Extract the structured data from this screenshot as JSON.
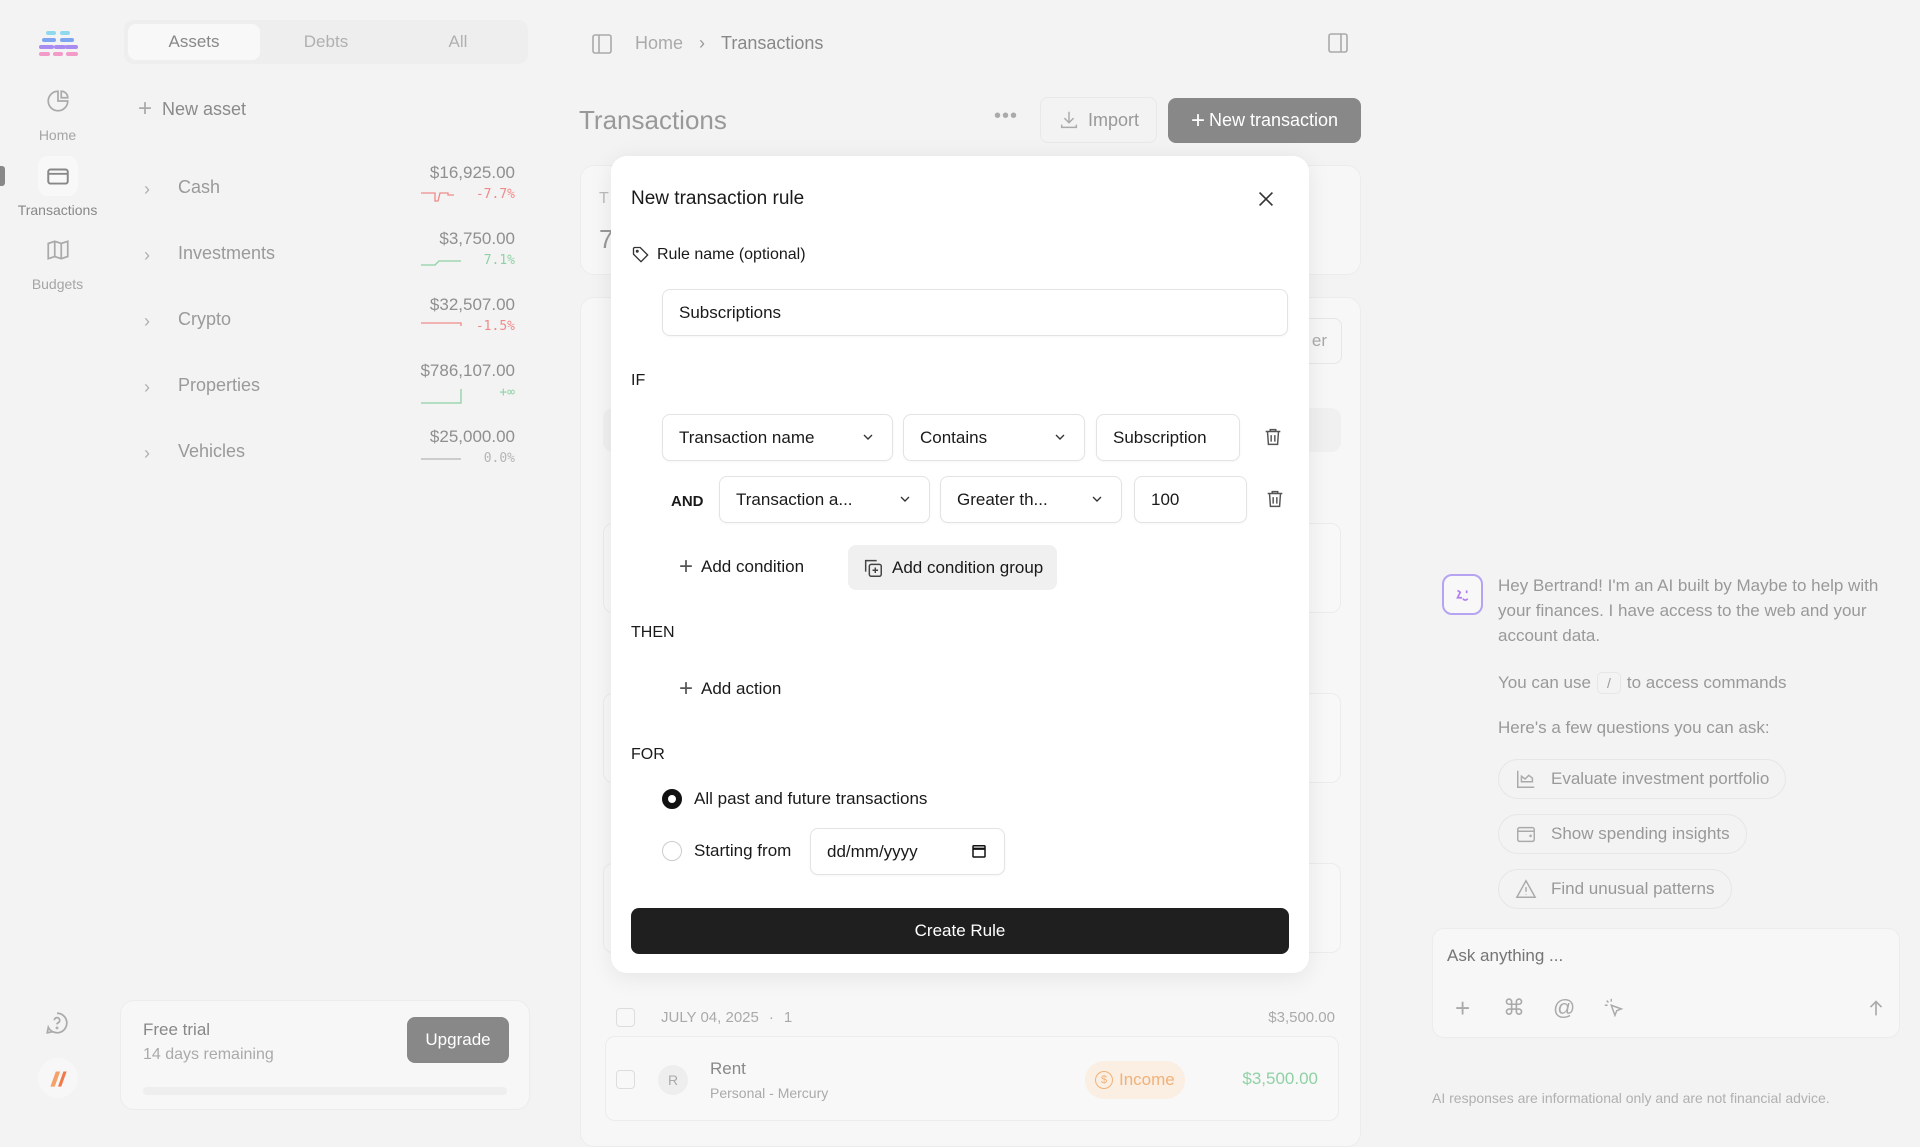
{
  "rail": {
    "items": [
      {
        "label": "Home",
        "icon": "pie-chart-icon"
      },
      {
        "label": "Transactions",
        "icon": "credit-card-icon",
        "active": true
      },
      {
        "label": "Budgets",
        "icon": "map-icon"
      }
    ]
  },
  "assets_panel": {
    "tabs": [
      {
        "label": "Assets",
        "active": true
      },
      {
        "label": "Debts"
      },
      {
        "label": "All"
      }
    ],
    "new_asset": "New asset",
    "rows": [
      {
        "name": "Cash",
        "value": "$16,925.00",
        "change": "-7.7%",
        "trend": "down"
      },
      {
        "name": "Investments",
        "value": "$3,750.00",
        "change": "7.1%",
        "trend": "up"
      },
      {
        "name": "Crypto",
        "value": "$32,507.00",
        "change": "-1.5%",
        "trend": "down"
      },
      {
        "name": "Properties",
        "value": "$786,107.00",
        "change": "+∞",
        "trend": "up"
      },
      {
        "name": "Vehicles",
        "value": "$25,000.00",
        "change": "0.0%",
        "trend": "flat"
      }
    ],
    "trial": {
      "title": "Free trial",
      "subtitle": "14 days remaining",
      "button": "Upgrade",
      "progress": 0
    }
  },
  "colors": {
    "negative": "#f08a8a",
    "positive": "#8fd1a5",
    "neutral": "#b5b5b5",
    "primary": "#1f1f1f",
    "income": "#f0b27a"
  },
  "breadcrumb": [
    "Home",
    "Transactions"
  ],
  "main": {
    "title": "Transactions",
    "import_label": "Import",
    "new_transaction_label": "New transaction",
    "summary_partial": "T",
    "summary_value_partial": "7",
    "filter_partial": "er",
    "group": {
      "date": "JULY 04, 2025",
      "count": "1",
      "total": "$3,500.00"
    },
    "row": {
      "initial": "R",
      "name": "Rent",
      "account": "Personal - Mercury",
      "category": "Income",
      "amount": "$3,500.00"
    }
  },
  "modal": {
    "title": "New transaction rule",
    "rule_name_label": "Rule name (optional)",
    "rule_name_value": "Subscriptions",
    "if_label": "IF",
    "conditions": [
      {
        "field": "Transaction name",
        "operator": "Contains",
        "value": "Subscription"
      },
      {
        "connector": "AND",
        "field": "Transaction a...",
        "operator": "Greater th...",
        "value": "100"
      }
    ],
    "add_condition": "Add condition",
    "add_condition_group": "Add condition group",
    "then_label": "THEN",
    "add_action": "Add action",
    "for_label": "FOR",
    "options": [
      {
        "label": "All past and future transactions",
        "selected": true
      },
      {
        "label": "Starting from",
        "selected": false
      }
    ],
    "date_placeholder": "dd/mm/yyyy",
    "submit": "Create Rule"
  },
  "chat": {
    "greeting": "Hey Bertrand! I'm an AI built by Maybe to help with your finances. I have access to the web and your account data.",
    "commands_pre": "You can use",
    "commands_key": "/",
    "commands_post": "to access commands",
    "questions_intro": "Here's a few questions you can ask:",
    "suggestions": [
      {
        "label": "Evaluate investment portfolio",
        "icon": "chart-icon"
      },
      {
        "label": "Show spending insights",
        "icon": "wallet-icon"
      },
      {
        "label": "Find unusual patterns",
        "icon": "warning-icon"
      }
    ],
    "input_placeholder": "Ask anything ...",
    "disclaimer": "AI responses are informational only and are not financial advice."
  }
}
